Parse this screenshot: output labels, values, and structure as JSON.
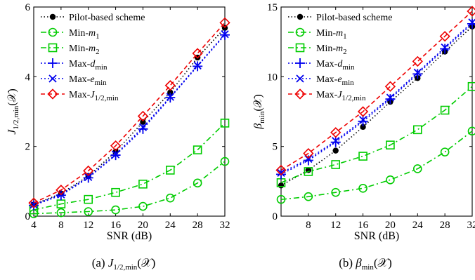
{
  "chart_data": [
    {
      "type": "line",
      "caption_letter": "(a)",
      "caption_sym": "J",
      "caption_sub": "1/2,min",
      "caption_arg": "(𝒳)",
      "xlabel": "SNR (dB)",
      "ylabel_sym": "J",
      "ylabel_sub": "1/2,min",
      "ylabel_arg": "(𝒳)",
      "xlim": [
        4,
        32
      ],
      "ylim": [
        0,
        6
      ],
      "xticks": [
        "4",
        "8",
        "12",
        "16",
        "20",
        "24",
        "28",
        "32"
      ],
      "yticks": [
        "0",
        "2",
        "4",
        "6"
      ],
      "x": [
        4,
        8,
        12,
        16,
        20,
        24,
        28,
        32
      ],
      "legend_position": "top-left",
      "series": [
        {
          "name": "Pilot-based scheme",
          "color": "#000000",
          "marker": "dot",
          "dash": "1.5 3",
          "values": [
            0.33,
            0.65,
            1.15,
            1.85,
            2.7,
            3.55,
            4.55,
            5.4
          ]
        },
        {
          "name": "Min-m1",
          "color": "#00cc00",
          "marker": "circle",
          "dash": "8 4 2 4",
          "values": [
            0.07,
            0.1,
            0.13,
            0.18,
            0.28,
            0.52,
            0.95,
            1.57
          ]
        },
        {
          "name": "Min-m2",
          "color": "#00cc00",
          "marker": "square",
          "dash": "8 4 2 4",
          "values": [
            0.18,
            0.35,
            0.48,
            0.68,
            0.92,
            1.32,
            1.9,
            2.67
          ]
        },
        {
          "name": "Max-dmin",
          "color": "#0000ee",
          "marker": "plus",
          "dash": "2 3",
          "values": [
            0.31,
            0.6,
            1.1,
            1.75,
            2.5,
            3.4,
            4.3,
            5.2
          ]
        },
        {
          "name": "Max-emin",
          "color": "#0000ee",
          "marker": "cross",
          "dash": "2 3",
          "values": [
            0.33,
            0.62,
            1.12,
            1.77,
            2.55,
            3.42,
            4.32,
            5.22
          ]
        },
        {
          "name": "Max-J1/2,min",
          "color": "#ee0000",
          "marker": "diamond",
          "dash": "6 4",
          "values": [
            0.38,
            0.75,
            1.3,
            2.02,
            2.87,
            3.75,
            4.67,
            5.55
          ]
        }
      ]
    },
    {
      "type": "line",
      "caption_letter": "(b)",
      "caption_sym": "β",
      "caption_sub": "min",
      "caption_arg": "(𝒳)",
      "xlabel": "SNR (dB)",
      "ylabel_sym": "β",
      "ylabel_sub": "min",
      "ylabel_arg": "(𝒳)",
      "xlim": [
        4,
        32
      ],
      "ylim": [
        0,
        15
      ],
      "xticks": [
        "8",
        "12",
        "16",
        "20",
        "24",
        "28",
        "32"
      ],
      "yticks": [
        "0",
        "5",
        "10",
        "15"
      ],
      "x": [
        4,
        8,
        12,
        16,
        20,
        24,
        28,
        32
      ],
      "legend_position": "top-left",
      "series": [
        {
          "name": "Pilot-based scheme",
          "color": "#000000",
          "marker": "dot",
          "dash": "1.5 3",
          "values": [
            2.2,
            3.3,
            4.7,
            6.4,
            8.2,
            9.9,
            11.8,
            13.6
          ]
        },
        {
          "name": "Min-m1",
          "color": "#00cc00",
          "marker": "circle",
          "dash": "8 4 2 4",
          "values": [
            1.2,
            1.4,
            1.7,
            2.0,
            2.6,
            3.4,
            4.6,
            6.1
          ]
        },
        {
          "name": "Min-m2",
          "color": "#00cc00",
          "marker": "square",
          "dash": "8 4 2 4",
          "values": [
            2.4,
            3.2,
            3.7,
            4.3,
            5.1,
            6.2,
            7.6,
            9.3
          ]
        },
        {
          "name": "Max-dmin",
          "color": "#0000ee",
          "marker": "plus",
          "dash": "2 3",
          "values": [
            3.0,
            4.0,
            5.3,
            6.8,
            8.4,
            10.2,
            12.0,
            13.8
          ]
        },
        {
          "name": "Max-emin",
          "color": "#0000ee",
          "marker": "cross",
          "dash": "2 3",
          "values": [
            3.1,
            4.1,
            5.4,
            6.9,
            8.5,
            10.3,
            12.1,
            13.9
          ]
        },
        {
          "name": "Max-J1/2,min",
          "color": "#ee0000",
          "marker": "diamond",
          "dash": "6 4",
          "values": [
            3.3,
            4.5,
            6.0,
            7.5,
            9.3,
            11.1,
            12.9,
            14.7
          ]
        }
      ]
    }
  ],
  "legend_labels": [
    {
      "base": "Pilot-based scheme",
      "sym": "",
      "sub": ""
    },
    {
      "base": "Min-",
      "sym": "m",
      "sub": "1"
    },
    {
      "base": "Min-",
      "sym": "m",
      "sub": "2"
    },
    {
      "base": "Max-",
      "sym": "d",
      "sub": "min"
    },
    {
      "base": "Max-",
      "sym": "e",
      "sub": "min"
    },
    {
      "base": "Max-",
      "sym": "J",
      "sub": "1/2,min"
    }
  ]
}
